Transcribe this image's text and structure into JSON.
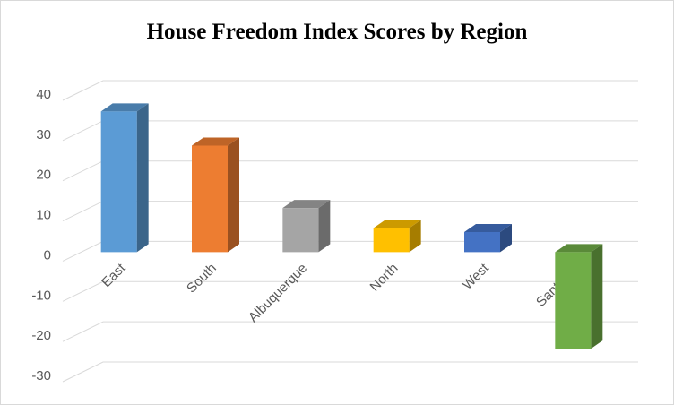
{
  "chart_data": {
    "type": "bar3d",
    "title": "House Freedom Index Scores by Region",
    "categories": [
      "East",
      "South",
      "Albuquerque",
      "North",
      "West",
      "Santa Fe"
    ],
    "values": [
      35,
      26.5,
      11,
      6,
      5,
      -24
    ],
    "colors": [
      "#5b9bd5",
      "#ed7d31",
      "#a5a5a5",
      "#ffc000",
      "#4472c4",
      "#70ad47"
    ],
    "ylim": [
      -30,
      40
    ],
    "yticks": [
      -30,
      -20,
      -10,
      0,
      10,
      20,
      30,
      40
    ],
    "grid": true
  }
}
